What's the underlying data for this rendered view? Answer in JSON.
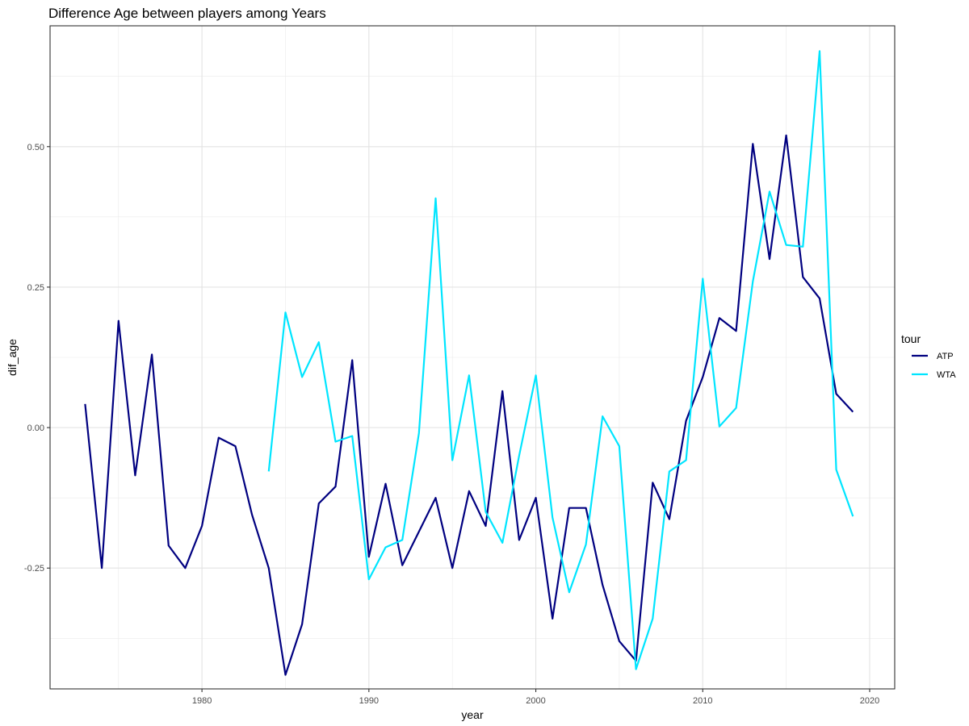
{
  "chart_data": {
    "type": "line",
    "title": "Difference Age between players among Years",
    "xlabel": "year",
    "ylabel": "dif_age",
    "xlim": [
      1970.9,
      2021.5
    ],
    "ylim": [
      -0.465,
      0.715
    ],
    "x_ticks": [
      1980,
      1990,
      2000,
      2010,
      2020
    ],
    "x_tick_labels": [
      "1980",
      "1990",
      "2000",
      "2010",
      "2020"
    ],
    "y_ticks": [
      -0.25,
      0.0,
      0.25,
      0.5
    ],
    "y_tick_labels": [
      "-0.25",
      "0.00",
      "0.25",
      "0.50"
    ],
    "y_minor_ticks": [
      -0.375,
      -0.125,
      0.125,
      0.375,
      0.625
    ],
    "x_minor_ticks": [
      1975,
      1985,
      1995,
      2005,
      2015
    ],
    "grid": true,
    "legend": {
      "title": "tour",
      "position": "right"
    },
    "series": [
      {
        "name": "ATP",
        "color": "#000080",
        "x": [
          1973,
          1974,
          1975,
          1976,
          1977,
          1978,
          1979,
          1980,
          1981,
          1982,
          1983,
          1984,
          1985,
          1986,
          1987,
          1988,
          1989,
          1990,
          1991,
          1992,
          1994,
          1995,
          1996,
          1997,
          1998,
          1999,
          2000,
          2001,
          2002,
          2003,
          2004,
          2005,
          2006,
          2007,
          2008,
          2009,
          2010,
          2011,
          2012,
          2013,
          2014,
          2015,
          2016,
          2017,
          2018,
          2019
        ],
        "y": [
          0.042,
          -0.25,
          0.19,
          -0.085,
          0.13,
          -0.21,
          -0.25,
          -0.175,
          -0.018,
          -0.033,
          -0.155,
          -0.25,
          -0.44,
          -0.35,
          -0.135,
          -0.105,
          0.12,
          -0.23,
          -0.1,
          -0.245,
          -0.125,
          -0.25,
          -0.113,
          -0.175,
          0.065,
          -0.2,
          -0.125,
          -0.34,
          -0.143,
          -0.143,
          -0.28,
          -0.38,
          -0.415,
          -0.098,
          -0.163,
          0.012,
          0.09,
          0.195,
          0.172,
          0.505,
          0.3,
          0.52,
          0.268,
          0.23,
          0.06,
          0.028
        ]
      },
      {
        "name": "WTA",
        "color": "#00e5ff",
        "x": [
          1984,
          1985,
          1986,
          1987,
          1988,
          1989,
          1990,
          1991,
          1992,
          1993,
          1994,
          1995,
          1996,
          1997,
          1998,
          1999,
          2000,
          2001,
          2002,
          2003,
          2004,
          2005,
          2006,
          2007,
          2008,
          2009,
          2010,
          2011,
          2012,
          2013,
          2014,
          2015,
          2016,
          2017,
          2018,
          2019
        ],
        "y": [
          -0.078,
          0.205,
          0.09,
          0.152,
          -0.025,
          -0.015,
          -0.27,
          -0.213,
          -0.2,
          -0.01,
          0.408,
          -0.058,
          0.093,
          -0.15,
          -0.205,
          -0.05,
          0.093,
          -0.16,
          -0.293,
          -0.208,
          0.02,
          -0.033,
          -0.43,
          -0.34,
          -0.078,
          -0.058,
          0.265,
          0.002,
          0.035,
          0.26,
          0.42,
          0.325,
          0.322,
          0.67,
          -0.075,
          -0.158
        ]
      }
    ]
  }
}
